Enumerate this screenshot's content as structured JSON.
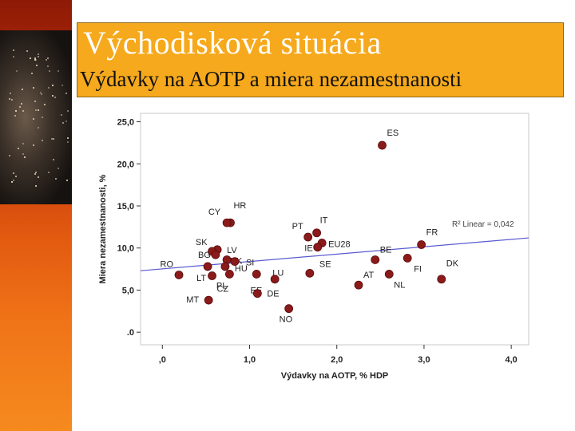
{
  "slide": {
    "title": "Východisková situácia",
    "subtitle": "Výdavky na AOTP a miera nezamestnanosti"
  },
  "colors": {
    "accent_orange": "#f6a91c",
    "strip_red": "#c3330a",
    "point_fill": "#8b1a1a",
    "fit_line": "#5a5ad0"
  },
  "chart_data": {
    "type": "scatter",
    "xlabel": "Výdavky na AOTP, % HDP",
    "ylabel": "Miera nezamestnanosti, %",
    "xlim": [
      -0.25,
      4.2
    ],
    "ylim": [
      -1.5,
      26.0
    ],
    "x_ticks": [
      0,
      1,
      2,
      3,
      4
    ],
    "x_tick_labels": [
      ",0",
      "1,0",
      "2,0",
      "3,0",
      "4,0"
    ],
    "y_ticks": [
      0,
      5,
      10,
      15,
      20,
      25
    ],
    "y_tick_labels": [
      ".0",
      "5,0",
      "10,0",
      "15,0",
      "20,0",
      "25,0"
    ],
    "fit_label": "R² Linear = 0,042",
    "fit_line": {
      "x": [
        -0.25,
        4.2
      ],
      "y": [
        7.3,
        11.2
      ]
    },
    "points": [
      {
        "label": "ES",
        "x": 2.52,
        "y": 22.2
      },
      {
        "label": "HR",
        "x": 0.78,
        "y": 13.0
      },
      {
        "label": "CY",
        "x": 0.74,
        "y": 13.0
      },
      {
        "label": "IT",
        "x": 1.77,
        "y": 11.8
      },
      {
        "label": "PT",
        "x": 1.67,
        "y": 11.3
      },
      {
        "label": "FR",
        "x": 2.97,
        "y": 10.4
      },
      {
        "label": "EU28",
        "x": 1.83,
        "y": 10.6
      },
      {
        "label": "LV",
        "x": 0.63,
        "y": 9.8
      },
      {
        "label": "SK",
        "x": 0.57,
        "y": 9.6
      },
      {
        "label": "IE",
        "x": 1.78,
        "y": 10.1
      },
      {
        "label": "BE",
        "x": 2.44,
        "y": 8.6
      },
      {
        "label": "BG",
        "x": 0.61,
        "y": 9.2
      },
      {
        "label": "UK",
        "x": 0.74,
        "y": 8.6
      },
      {
        "label": "SI",
        "x": 0.83,
        "y": 8.4
      },
      {
        "label": "FI",
        "x": 2.81,
        "y": 8.8
      },
      {
        "label": "LU",
        "x": 1.08,
        "y": 6.9
      },
      {
        "label": "SE",
        "x": 1.69,
        "y": 7.0
      },
      {
        "label": "RO",
        "x": 0.19,
        "y": 6.8
      },
      {
        "label": "HU",
        "x": 0.72,
        "y": 7.8
      },
      {
        "label": "LT",
        "x": 0.52,
        "y": 7.8
      },
      {
        "label": "PL",
        "x": 0.77,
        "y": 6.9
      },
      {
        "label": "AT",
        "x": 2.25,
        "y": 5.6
      },
      {
        "label": "DK",
        "x": 3.2,
        "y": 6.3
      },
      {
        "label": "NL",
        "x": 2.6,
        "y": 6.9
      },
      {
        "label": "EE",
        "x": 1.29,
        "y": 6.3
      },
      {
        "label": "DE",
        "x": 1.09,
        "y": 4.6
      },
      {
        "label": "NO",
        "x": 1.45,
        "y": 2.8
      },
      {
        "label": "MT",
        "x": 0.53,
        "y": 3.8
      },
      {
        "label": "CZ",
        "x": 0.57,
        "y": 6.7
      }
    ]
  }
}
